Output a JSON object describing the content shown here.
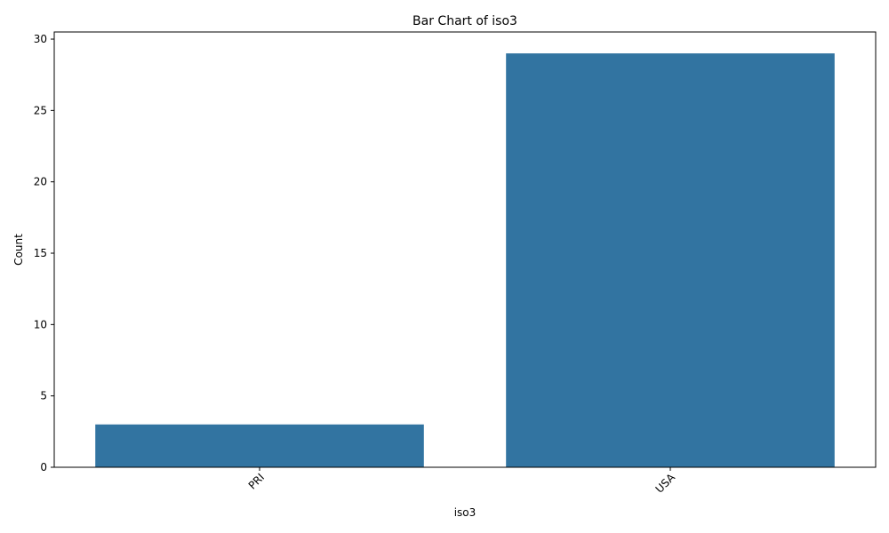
{
  "chart_data": {
    "type": "bar",
    "title": "Bar Chart of iso3",
    "xlabel": "iso3",
    "ylabel": "Count",
    "categories": [
      "PRI",
      "USA"
    ],
    "values": [
      3,
      29
    ],
    "ylim": [
      0,
      30.5
    ],
    "yticks": [
      0,
      5,
      10,
      15,
      20,
      25,
      30
    ],
    "bar_color": "#3274a1",
    "grid": false,
    "legend": "none"
  }
}
